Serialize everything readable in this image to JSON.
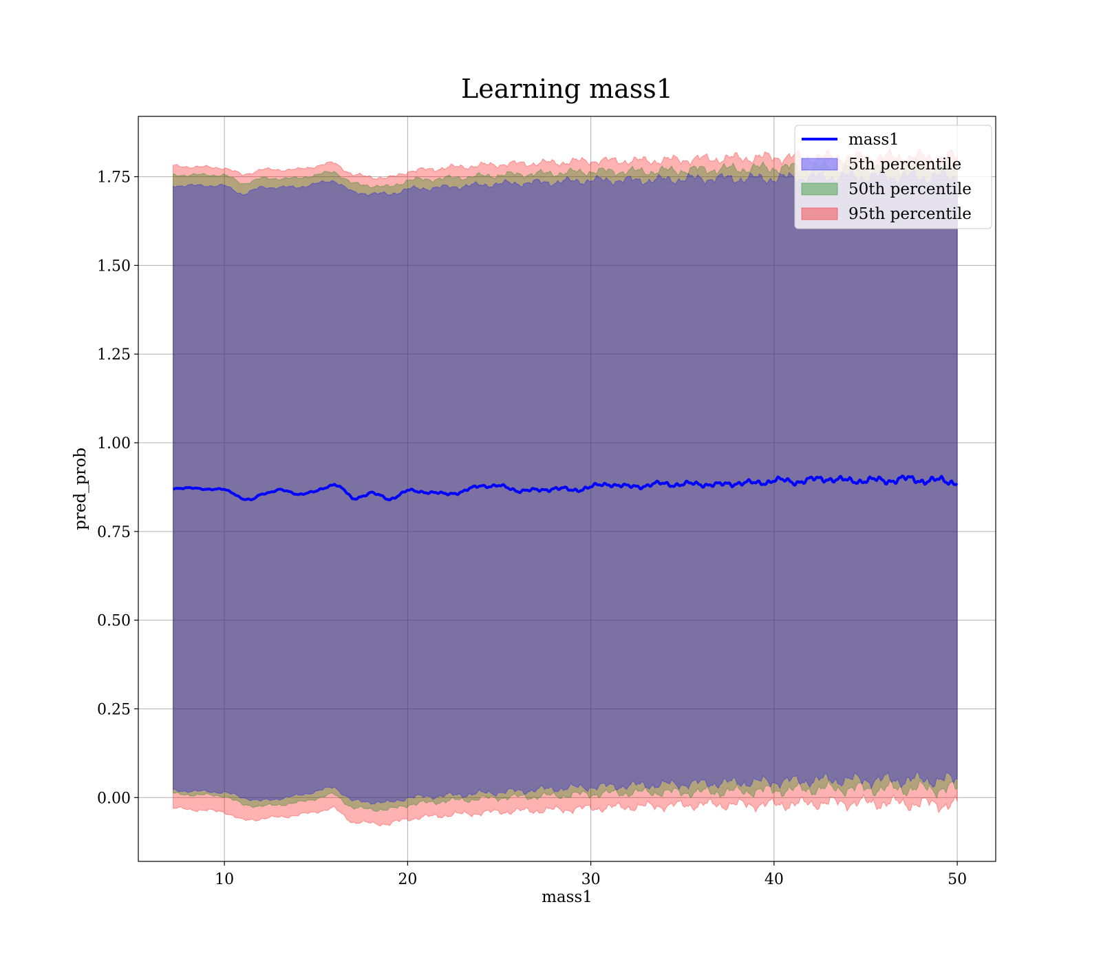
{
  "chart_data": {
    "type": "line",
    "title": "Learning mass1",
    "xlabel": "mass1",
    "ylabel": "pred_prob",
    "xlim": [
      5.3,
      52.1
    ],
    "ylim": [
      -0.18,
      1.92
    ],
    "x_ticks": [
      10,
      20,
      30,
      40,
      50
    ],
    "y_ticks": [
      0.0,
      0.25,
      0.5,
      0.75,
      1.0,
      1.25,
      1.5,
      1.75
    ],
    "x_tick_labels": [
      "10",
      "20",
      "30",
      "40",
      "50"
    ],
    "y_tick_labels": [
      "0.00",
      "0.25",
      "0.50",
      "0.75",
      "1.00",
      "1.25",
      "1.50",
      "1.75"
    ],
    "grid": true,
    "legend_position": "top-right",
    "x_range": [
      7.2,
      50.0
    ],
    "series": [
      {
        "name": "mass1",
        "kind": "line",
        "color": "#0000ff",
        "x": [
          7.2,
          8.0,
          9.0,
          10.0,
          10.5,
          11.0,
          11.5,
          12.0,
          13.0,
          14.0,
          15.0,
          16.0,
          16.5,
          17.0,
          18.0,
          19.0,
          20.0,
          21.0,
          22.0,
          23.0,
          24.0,
          25.0,
          26.0,
          27.0,
          28.0,
          29.0,
          30.0,
          31.0,
          32.0,
          33.0,
          34.0,
          35.0,
          36.0,
          37.0,
          38.0,
          39.0,
          40.0,
          41.0,
          42.0,
          43.0,
          44.0,
          45.0,
          46.0,
          47.0,
          48.0,
          49.0,
          50.0
        ],
        "values": [
          0.872,
          0.872,
          0.87,
          0.868,
          0.858,
          0.842,
          0.838,
          0.855,
          0.868,
          0.855,
          0.862,
          0.885,
          0.868,
          0.84,
          0.86,
          0.84,
          0.865,
          0.862,
          0.855,
          0.862,
          0.88,
          0.878,
          0.866,
          0.865,
          0.872,
          0.866,
          0.875,
          0.885,
          0.875,
          0.88,
          0.885,
          0.882,
          0.885,
          0.88,
          0.888,
          0.885,
          0.895,
          0.89,
          0.895,
          0.9,
          0.892,
          0.895,
          0.893,
          0.898,
          0.895,
          0.893,
          0.89
        ]
      },
      {
        "name": "5th percentile",
        "kind": "band",
        "color": "#0000ff",
        "x": [
          7.2,
          10.0,
          11.0,
          12.0,
          14.0,
          16.0,
          17.0,
          19.0,
          20.0,
          22.0,
          25.0,
          28.0,
          30.0,
          33.0,
          36.0,
          40.0,
          43.0,
          46.0,
          50.0
        ],
        "lower": [
          0.02,
          0.015,
          0.0,
          -0.01,
          0.005,
          0.03,
          -0.01,
          -0.015,
          0.0,
          0.005,
          0.015,
          0.025,
          0.03,
          0.035,
          0.04,
          0.045,
          0.05,
          0.05,
          0.05
        ],
        "upper": [
          1.725,
          1.725,
          1.7,
          1.72,
          1.72,
          1.74,
          1.705,
          1.7,
          1.715,
          1.72,
          1.73,
          1.735,
          1.74,
          1.74,
          1.745,
          1.745,
          1.75,
          1.75,
          1.75
        ]
      },
      {
        "name": "50th percentile",
        "kind": "band",
        "color": "#008000",
        "x": [
          7.2,
          10.0,
          11.0,
          12.0,
          14.0,
          16.0,
          17.0,
          19.0,
          20.0,
          22.0,
          25.0,
          28.0,
          30.0,
          33.0,
          36.0,
          40.0,
          43.0,
          46.0,
          50.0
        ],
        "lower": [
          0.01,
          0.005,
          -0.02,
          -0.025,
          -0.015,
          0.01,
          -0.03,
          -0.035,
          -0.02,
          -0.01,
          0.0,
          0.005,
          0.01,
          0.015,
          0.015,
          0.02,
          0.025,
          0.025,
          0.025
        ],
        "upper": [
          1.755,
          1.755,
          1.73,
          1.745,
          1.745,
          1.765,
          1.73,
          1.72,
          1.74,
          1.745,
          1.755,
          1.76,
          1.765,
          1.765,
          1.77,
          1.775,
          1.775,
          1.775,
          1.78
        ]
      },
      {
        "name": "95th percentile",
        "kind": "band",
        "color": "#ff0000",
        "x": [
          7.2,
          10.0,
          11.0,
          12.0,
          14.0,
          16.0,
          17.0,
          19.0,
          20.0,
          22.0,
          25.0,
          28.0,
          30.0,
          33.0,
          36.0,
          40.0,
          43.0,
          46.0,
          50.0
        ],
        "lower": [
          -0.03,
          -0.04,
          -0.065,
          -0.06,
          -0.05,
          -0.03,
          -0.07,
          -0.075,
          -0.06,
          -0.05,
          -0.04,
          -0.035,
          -0.03,
          -0.025,
          -0.02,
          -0.02,
          -0.015,
          -0.015,
          -0.02
        ],
        "upper": [
          1.78,
          1.775,
          1.755,
          1.77,
          1.77,
          1.79,
          1.755,
          1.745,
          1.765,
          1.775,
          1.785,
          1.79,
          1.795,
          1.795,
          1.8,
          1.805,
          1.805,
          1.805,
          1.805
        ]
      }
    ]
  }
}
